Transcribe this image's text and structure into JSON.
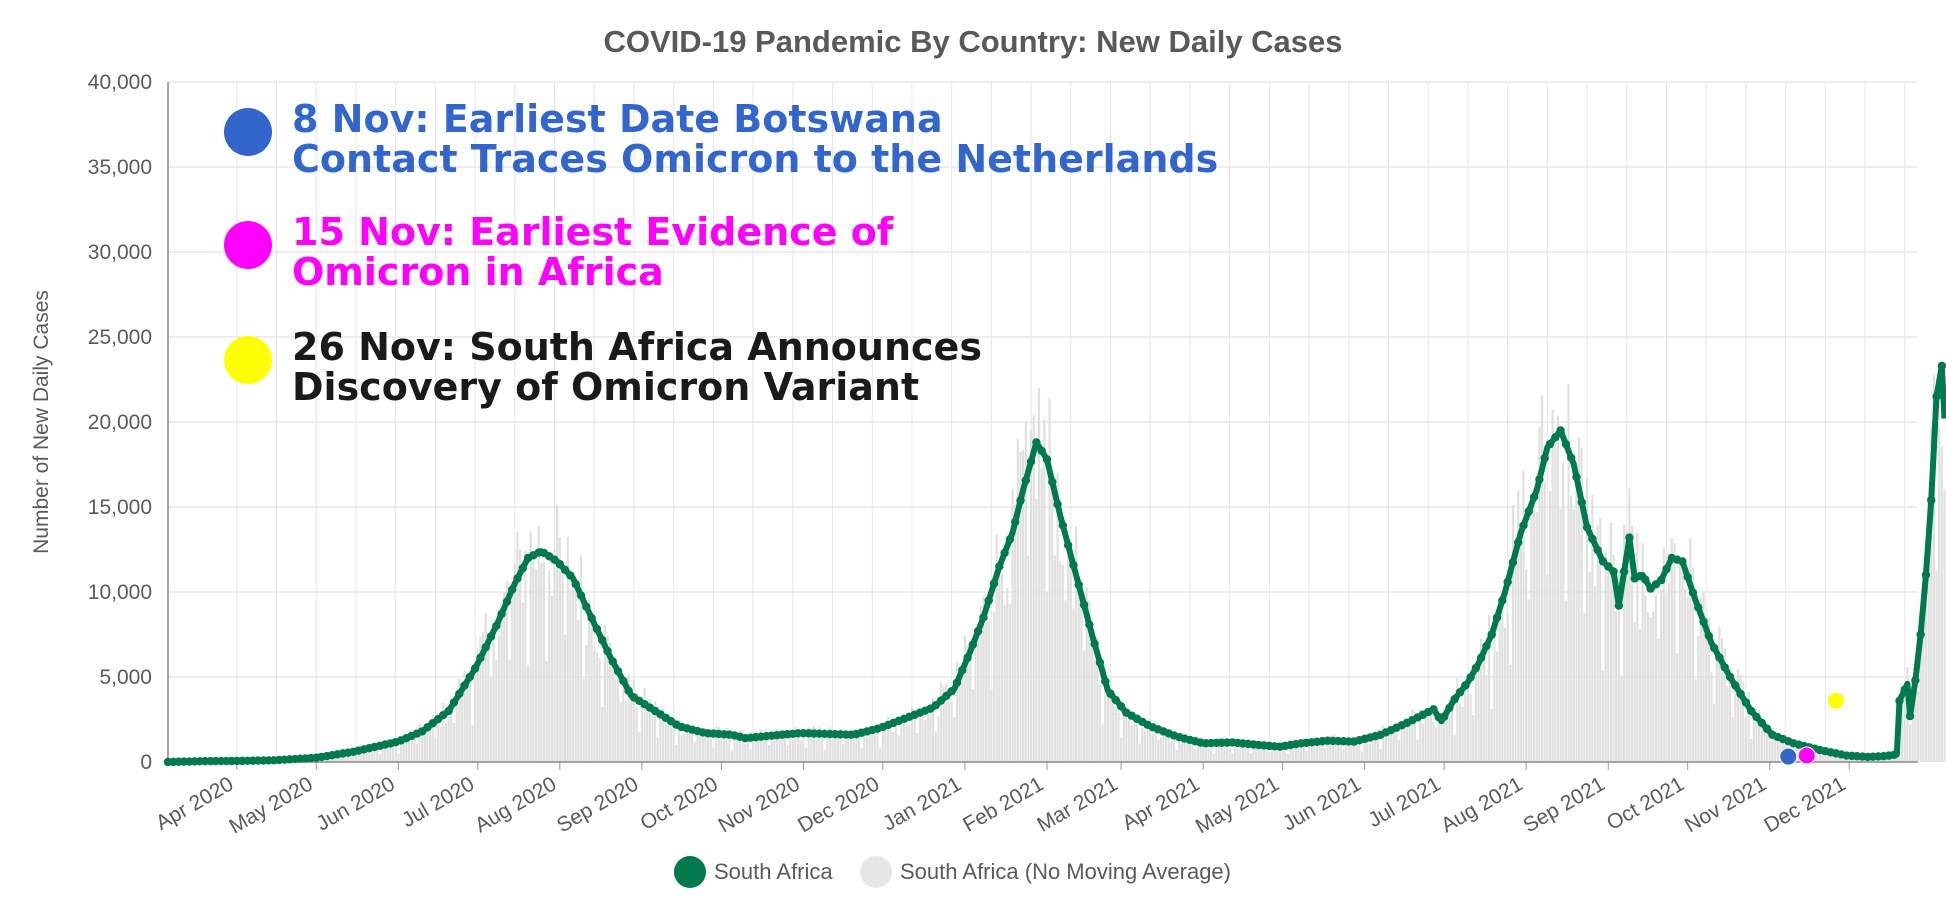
{
  "chart_data": {
    "type": "line",
    "title": "COVID-19 Pandemic By Country: New Daily Cases",
    "ylabel": "Number of New Daily Cases",
    "xlabel": "",
    "ylim": [
      0,
      40000
    ],
    "yticks": [
      0,
      5000,
      10000,
      15000,
      20000,
      25000,
      30000,
      35000,
      40000
    ],
    "ytick_labels": [
      "0",
      "5,000",
      "10,000",
      "15,000",
      "20,000",
      "25,000",
      "30,000",
      "35,000",
      "40,000"
    ],
    "xlim": [
      "2020-03-06",
      "2021-12-27"
    ],
    "xticks": [
      "2020-04-01",
      "2020-05-01",
      "2020-06-01",
      "2020-07-01",
      "2020-08-01",
      "2020-09-01",
      "2020-10-01",
      "2020-11-01",
      "2020-12-01",
      "2021-01-01",
      "2021-02-01",
      "2021-03-01",
      "2021-04-01",
      "2021-05-01",
      "2021-06-01",
      "2021-07-01",
      "2021-08-01",
      "2021-09-01",
      "2021-10-01",
      "2021-11-01",
      "2021-12-01"
    ],
    "xtick_labels": [
      "Apr 2020",
      "May 2020",
      "Jun 2020",
      "Jul 2020",
      "Aug 2020",
      "Sep 2020",
      "Oct 2020",
      "Nov 2020",
      "Dec 2020",
      "Jan 2021",
      "Feb 2021",
      "Mar 2021",
      "Apr 2021",
      "May 2021",
      "Jun 2021",
      "Jul 2021",
      "Aug 2021",
      "Sep 2021",
      "Oct 2021",
      "Nov 2021",
      "Dec 2021"
    ],
    "grid": true,
    "legend_position": "bottom-center",
    "series": [
      {
        "name": "South Africa",
        "color": "#007a4d",
        "style": "line-with-markers",
        "points": [
          [
            "2020-03-06",
            0
          ],
          [
            "2020-03-20",
            50
          ],
          [
            "2020-04-01",
            60
          ],
          [
            "2020-04-15",
            100
          ],
          [
            "2020-05-01",
            250
          ],
          [
            "2020-05-15",
            600
          ],
          [
            "2020-06-01",
            1200
          ],
          [
            "2020-06-10",
            1800
          ],
          [
            "2020-06-20",
            3000
          ],
          [
            "2020-06-30",
            5500
          ],
          [
            "2020-07-08",
            8000
          ],
          [
            "2020-07-15",
            10500
          ],
          [
            "2020-07-20",
            12000
          ],
          [
            "2020-07-25",
            12400
          ],
          [
            "2020-07-31",
            11800
          ],
          [
            "2020-08-06",
            10800
          ],
          [
            "2020-08-12",
            8800
          ],
          [
            "2020-08-20",
            6200
          ],
          [
            "2020-08-28",
            3900
          ],
          [
            "2020-09-07",
            2900
          ],
          [
            "2020-09-15",
            2100
          ],
          [
            "2020-09-25",
            1700
          ],
          [
            "2020-10-05",
            1600
          ],
          [
            "2020-10-10",
            1400
          ],
          [
            "2020-10-20",
            1550
          ],
          [
            "2020-10-31",
            1700
          ],
          [
            "2020-11-10",
            1650
          ],
          [
            "2020-11-20",
            1600
          ],
          [
            "2020-11-30",
            2000
          ],
          [
            "2020-12-10",
            2600
          ],
          [
            "2020-12-20",
            3200
          ],
          [
            "2020-12-28",
            4300
          ],
          [
            "2021-01-03",
            6500
          ],
          [
            "2021-01-08",
            8500
          ],
          [
            "2021-01-14",
            11500
          ],
          [
            "2021-01-19",
            13500
          ],
          [
            "2021-01-23",
            16000
          ],
          [
            "2021-01-28",
            18800
          ],
          [
            "2021-02-01",
            17800
          ],
          [
            "2021-02-06",
            14500
          ],
          [
            "2021-02-12",
            11000
          ],
          [
            "2021-02-18",
            7500
          ],
          [
            "2021-02-24",
            4200
          ],
          [
            "2021-03-03",
            2900
          ],
          [
            "2021-03-12",
            2100
          ],
          [
            "2021-03-22",
            1500
          ],
          [
            "2021-04-01",
            1100
          ],
          [
            "2021-04-12",
            1150
          ],
          [
            "2021-04-22",
            1000
          ],
          [
            "2021-04-30",
            900
          ],
          [
            "2021-05-08",
            1100
          ],
          [
            "2021-05-18",
            1250
          ],
          [
            "2021-05-28",
            1200
          ],
          [
            "2021-06-07",
            1600
          ],
          [
            "2021-06-17",
            2300
          ],
          [
            "2021-06-27",
            3100
          ],
          [
            "2021-06-30",
            2400
          ],
          [
            "2021-07-05",
            3700
          ],
          [
            "2021-07-10",
            4700
          ],
          [
            "2021-07-14",
            5800
          ],
          [
            "2021-07-19",
            7500
          ],
          [
            "2021-07-24",
            10000
          ],
          [
            "2021-07-30",
            13500
          ],
          [
            "2021-08-05",
            16000
          ],
          [
            "2021-08-09",
            18500
          ],
          [
            "2021-08-14",
            19500
          ],
          [
            "2021-08-19",
            17500
          ],
          [
            "2021-08-24",
            13800
          ],
          [
            "2021-08-30",
            11800
          ],
          [
            "2021-09-03",
            11200
          ],
          [
            "2021-09-05",
            9200
          ],
          [
            "2021-09-07",
            11200
          ],
          [
            "2021-09-09",
            13200
          ],
          [
            "2021-09-11",
            10800
          ],
          [
            "2021-09-14",
            11000
          ],
          [
            "2021-09-17",
            10200
          ],
          [
            "2021-09-21",
            10700
          ],
          [
            "2021-09-25",
            12000
          ],
          [
            "2021-09-29",
            11800
          ],
          [
            "2021-10-04",
            9500
          ],
          [
            "2021-10-10",
            7000
          ],
          [
            "2021-10-17",
            5000
          ],
          [
            "2021-10-25",
            3000
          ],
          [
            "2021-11-02",
            1600
          ],
          [
            "2021-11-10",
            1100
          ],
          [
            "2021-11-20",
            700
          ],
          [
            "2021-11-30",
            380
          ],
          [
            "2021-12-08",
            300
          ],
          [
            "2021-12-15",
            350
          ],
          [
            "2021-12-19",
            450
          ],
          [
            "2021-12-20",
            3600
          ],
          [
            "2021-12-23",
            4600
          ],
          [
            "2021-12-24",
            2700
          ],
          [
            "2021-12-26",
            4800
          ],
          [
            "2021-12-28",
            7500
          ],
          [
            "2021-12-30",
            11000
          ],
          [
            "2022-01-01",
            15400
          ],
          [
            "2022-01-03",
            21500
          ],
          [
            "2022-01-05",
            23300
          ],
          [
            "2022-01-06",
            20200
          ]
        ]
      },
      {
        "name": "South Africa (No Moving Average)",
        "color": "#e0e0e0",
        "style": "bars"
      }
    ],
    "markers": [
      {
        "date": "2021-11-08",
        "value": 320,
        "color": "#3366cc"
      },
      {
        "date": "2021-11-15",
        "value": 380,
        "color": "#ff00ff"
      },
      {
        "date": "2021-11-26",
        "value": 3600,
        "color": "#ffff00"
      }
    ]
  },
  "annotations": [
    {
      "color": "#3366cc",
      "text_color": "#3366cc",
      "line1": "8 Nov: Earliest Date Botswana",
      "line2": "Contact Traces Omicron to the Netherlands"
    },
    {
      "color": "#ff00ff",
      "text_color": "#ff00ff",
      "line1": "15 Nov: Earliest Evidence of",
      "line2": "Omicron in Africa"
    },
    {
      "color": "#ffff00",
      "text_color": "#1a1a1a",
      "line1": "26 Nov: South Africa Announces",
      "line2": "Discovery of Omicron Variant"
    }
  ],
  "legend": [
    {
      "label": "South Africa",
      "color": "#007a4d"
    },
    {
      "label": "South Africa (No Moving Average)",
      "color": "#e6e6e6"
    }
  ]
}
